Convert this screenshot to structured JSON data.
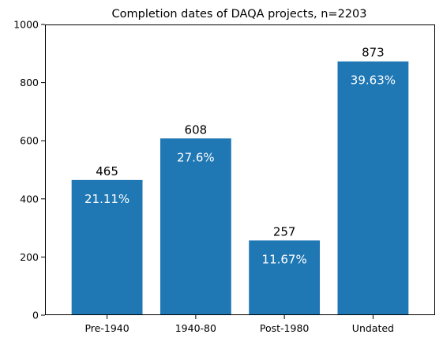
{
  "chart_data": {
    "type": "bar",
    "title": "Completion dates of DAQA projects, n=2203",
    "xlabel": "",
    "ylabel": "",
    "categories": [
      "Pre-1940",
      "1940-80",
      "Post-1980",
      "Undated"
    ],
    "values": [
      465,
      608,
      257,
      873
    ],
    "percent_labels": [
      "21.11%",
      "27.6%",
      "11.67%",
      "39.63%"
    ],
    "value_labels": [
      "465",
      "608",
      "257",
      "873"
    ],
    "ylim": [
      0,
      1000
    ],
    "yticks": [
      0,
      200,
      400,
      600,
      800,
      1000
    ],
    "ytick_labels": [
      "0",
      "200",
      "400",
      "600",
      "800",
      "1000"
    ],
    "grid": false,
    "legend": "none",
    "bar_color": "#1f77b4",
    "value_label_color": "#000000",
    "percent_label_color": "#ffffff"
  }
}
